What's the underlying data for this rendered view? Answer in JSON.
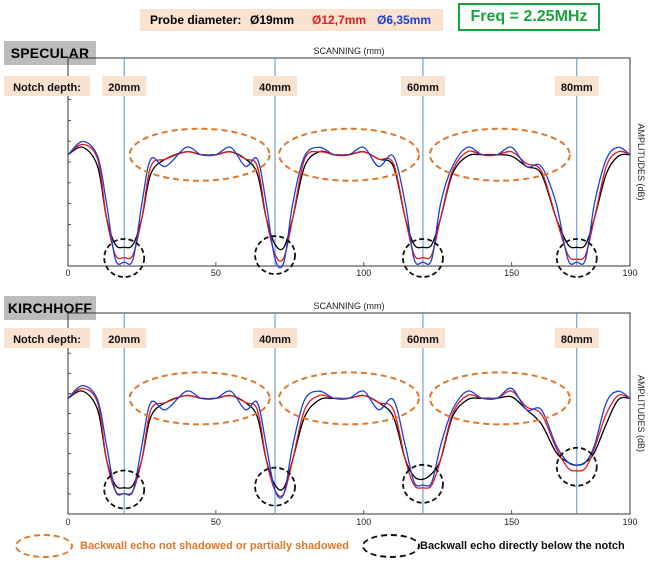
{
  "probe": {
    "label": "Probe diameter:",
    "d1": "Ø19mm",
    "d2": "Ø12,7mm",
    "d3": "Ø6,35mm",
    "colors": {
      "d1": "#000000",
      "d2": "#e31a1c",
      "d3": "#1f3fd8"
    }
  },
  "freq": "Freq = 2.25MHz",
  "legend": {
    "orange": "Backwall echo not shadowed or partially shadowed",
    "black": "Backwall echo directly below the notch"
  },
  "panels": [
    {
      "title": "SPECULAR",
      "xlabel": "SCANNING (mm)",
      "ylabel": "AMPLITUDES (dB)",
      "notch_label": "Notch depth:",
      "notches": [
        "20mm",
        "40mm",
        "60mm",
        "80mm"
      ],
      "ticks": [
        "0",
        "50",
        "100",
        "150",
        "190"
      ]
    },
    {
      "title": "KIRCHHOFF",
      "xlabel": "SCANNING (mm)",
      "ylabel": "AMPLITUDES (dB)",
      "notch_label": "Notch depth:",
      "notches": [
        "20mm",
        "40mm",
        "60mm",
        "80mm"
      ],
      "ticks": [
        "0",
        "50",
        "100",
        "150",
        "190"
      ]
    }
  ],
  "chart_data": [
    {
      "type": "line",
      "title": "SPECULAR",
      "xlabel": "SCANNING (mm)",
      "ylabel": "AMPLITUDES (dB)",
      "xlim": [
        0,
        190
      ],
      "xticks": [
        0,
        50,
        100,
        150,
        190
      ],
      "notch_positions": [
        19,
        70,
        120,
        172
      ],
      "notch_depths": [
        "20mm",
        "40mm",
        "60mm",
        "80mm"
      ],
      "x": [
        0,
        5,
        10,
        13,
        16,
        19,
        22,
        25,
        28,
        33,
        40,
        45,
        50,
        55,
        60,
        64,
        67,
        70,
        73,
        76,
        80,
        85,
        90,
        95,
        100,
        105,
        110,
        114,
        117,
        120,
        123,
        126,
        130,
        135,
        140,
        145,
        150,
        155,
        160,
        165,
        169,
        172,
        175,
        178,
        182,
        186,
        190
      ],
      "series": [
        {
          "name": "Ø19mm",
          "color": "#000000",
          "values": [
            0.73,
            0.78,
            0.65,
            0.3,
            0.12,
            0.1,
            0.12,
            0.3,
            0.6,
            0.7,
            0.75,
            0.73,
            0.73,
            0.75,
            0.7,
            0.6,
            0.3,
            0.12,
            0.1,
            0.3,
            0.65,
            0.75,
            0.73,
            0.73,
            0.75,
            0.7,
            0.65,
            0.3,
            0.12,
            0.1,
            0.12,
            0.3,
            0.6,
            0.72,
            0.73,
            0.73,
            0.72,
            0.65,
            0.6,
            0.3,
            0.12,
            0.1,
            0.12,
            0.3,
            0.6,
            0.72,
            0.73
          ]
        },
        {
          "name": "Ø12,7mm",
          "color": "#e31a1c",
          "values": [
            0.73,
            0.8,
            0.7,
            0.3,
            0.05,
            0.03,
            0.05,
            0.3,
            0.65,
            0.7,
            0.75,
            0.73,
            0.73,
            0.75,
            0.7,
            0.65,
            0.3,
            0.05,
            0.03,
            0.3,
            0.7,
            0.75,
            0.73,
            0.73,
            0.75,
            0.7,
            0.67,
            0.3,
            0.05,
            0.03,
            0.05,
            0.3,
            0.62,
            0.75,
            0.73,
            0.73,
            0.75,
            0.67,
            0.62,
            0.3,
            0.05,
            0.02,
            0.05,
            0.3,
            0.65,
            0.75,
            0.73
          ]
        },
        {
          "name": "Ø6,35mm",
          "color": "#1f3fd8",
          "values": [
            0.73,
            0.82,
            0.72,
            0.4,
            0.02,
            0.0,
            0.02,
            0.4,
            0.7,
            0.65,
            0.78,
            0.73,
            0.73,
            0.78,
            0.65,
            0.7,
            0.4,
            0.02,
            0.0,
            0.4,
            0.72,
            0.78,
            0.73,
            0.73,
            0.78,
            0.65,
            0.72,
            0.4,
            0.02,
            0.0,
            0.02,
            0.4,
            0.65,
            0.78,
            0.73,
            0.73,
            0.78,
            0.65,
            0.65,
            0.4,
            0.02,
            0.0,
            0.02,
            0.4,
            0.7,
            0.78,
            0.73
          ]
        }
      ]
    },
    {
      "type": "line",
      "title": "KIRCHHOFF",
      "xlabel": "SCANNING (mm)",
      "ylabel": "AMPLITUDES (dB)",
      "xlim": [
        0,
        190
      ],
      "xticks": [
        0,
        50,
        100,
        150,
        190
      ],
      "notch_positions": [
        19,
        70,
        120,
        172
      ],
      "notch_depths": [
        "20mm",
        "40mm",
        "60mm",
        "80mm"
      ],
      "x": [
        0,
        5,
        10,
        13,
        16,
        19,
        22,
        25,
        28,
        33,
        40,
        45,
        50,
        55,
        60,
        64,
        67,
        70,
        73,
        76,
        80,
        85,
        90,
        95,
        100,
        105,
        110,
        114,
        117,
        120,
        123,
        126,
        130,
        135,
        140,
        145,
        150,
        155,
        160,
        165,
        169,
        172,
        175,
        178,
        182,
        186,
        190
      ],
      "series": [
        {
          "name": "Ø19mm",
          "color": "#000000",
          "values": [
            0.73,
            0.78,
            0.65,
            0.3,
            0.12,
            0.1,
            0.12,
            0.3,
            0.6,
            0.7,
            0.75,
            0.73,
            0.73,
            0.75,
            0.7,
            0.6,
            0.3,
            0.12,
            0.1,
            0.3,
            0.6,
            0.72,
            0.73,
            0.73,
            0.75,
            0.7,
            0.6,
            0.3,
            0.18,
            0.16,
            0.2,
            0.3,
            0.6,
            0.72,
            0.73,
            0.73,
            0.74,
            0.65,
            0.55,
            0.35,
            0.28,
            0.26,
            0.28,
            0.35,
            0.55,
            0.72,
            0.73
          ]
        },
        {
          "name": "Ø12,7mm",
          "color": "#e31a1c",
          "values": [
            0.73,
            0.8,
            0.7,
            0.3,
            0.08,
            0.06,
            0.08,
            0.3,
            0.65,
            0.7,
            0.75,
            0.73,
            0.73,
            0.75,
            0.7,
            0.65,
            0.3,
            0.08,
            0.06,
            0.3,
            0.65,
            0.75,
            0.73,
            0.73,
            0.75,
            0.7,
            0.65,
            0.3,
            0.12,
            0.1,
            0.12,
            0.3,
            0.62,
            0.75,
            0.73,
            0.73,
            0.78,
            0.67,
            0.62,
            0.38,
            0.24,
            0.22,
            0.24,
            0.38,
            0.62,
            0.75,
            0.73
          ]
        },
        {
          "name": "Ø6,35mm",
          "color": "#1f3fd8",
          "values": [
            0.73,
            0.82,
            0.72,
            0.4,
            0.08,
            0.06,
            0.08,
            0.4,
            0.7,
            0.65,
            0.78,
            0.73,
            0.73,
            0.78,
            0.65,
            0.7,
            0.4,
            0.08,
            0.06,
            0.4,
            0.72,
            0.78,
            0.73,
            0.73,
            0.78,
            0.65,
            0.72,
            0.4,
            0.14,
            0.12,
            0.14,
            0.4,
            0.65,
            0.78,
            0.73,
            0.73,
            0.8,
            0.65,
            0.65,
            0.4,
            0.28,
            0.26,
            0.28,
            0.4,
            0.7,
            0.78,
            0.73
          ]
        }
      ]
    }
  ]
}
